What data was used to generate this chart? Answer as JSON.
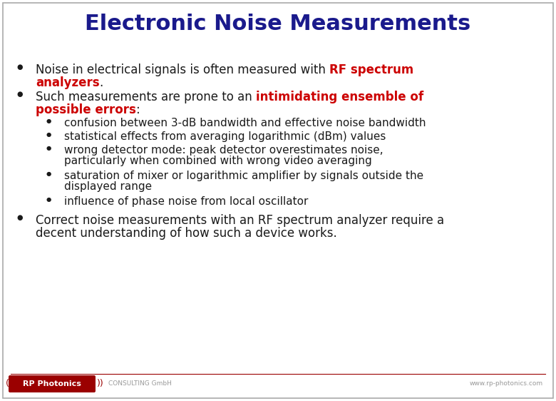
{
  "title": "Electronic Noise Measurements",
  "title_color": "#1a1a8c",
  "title_fontsize": 22,
  "bg_color": "#ffffff",
  "text_color": "#1a1a1a",
  "red_color": "#cc0000",
  "navy_color": "#1a1a8c",
  "bullet1_normal": "Noise in electrical signals is often measured with ",
  "bullet1_red": "RF spectrum",
  "bullet1_line2_red": "analyzers",
  "bullet1_line2_end": ".",
  "bullet2_normal": "Such measurements are prone to an ",
  "bullet2_red": "intimidating ensemble of",
  "bullet2_line2_red": "possible errors",
  "bullet2_line2_end": ":",
  "sub_bullets": [
    "confusion between 3-dB bandwidth and effective noise bandwidth",
    "statistical effects from averaging logarithmic (dBm) values",
    [
      "wrong detector mode: peak detector overestimates noise,",
      "particularly when combined with wrong video averaging"
    ],
    [
      "saturation of mixer or logarithmic amplifier by signals outside the",
      "displayed range"
    ],
    "influence of phase noise from local oscillator"
  ],
  "bullet3_line1": "Correct noise measurements with an RF spectrum analyzer require a",
  "bullet3_line2": "decent understanding of how such a device works.",
  "footer_left": "CONSULTING GmbH",
  "footer_right": "www.rp-photonics.com",
  "logo_text": "RP Photonics",
  "logo_bg": "#9b0000",
  "logo_text_color": "#ffffff",
  "main_fs": 12,
  "sub_fs": 11
}
